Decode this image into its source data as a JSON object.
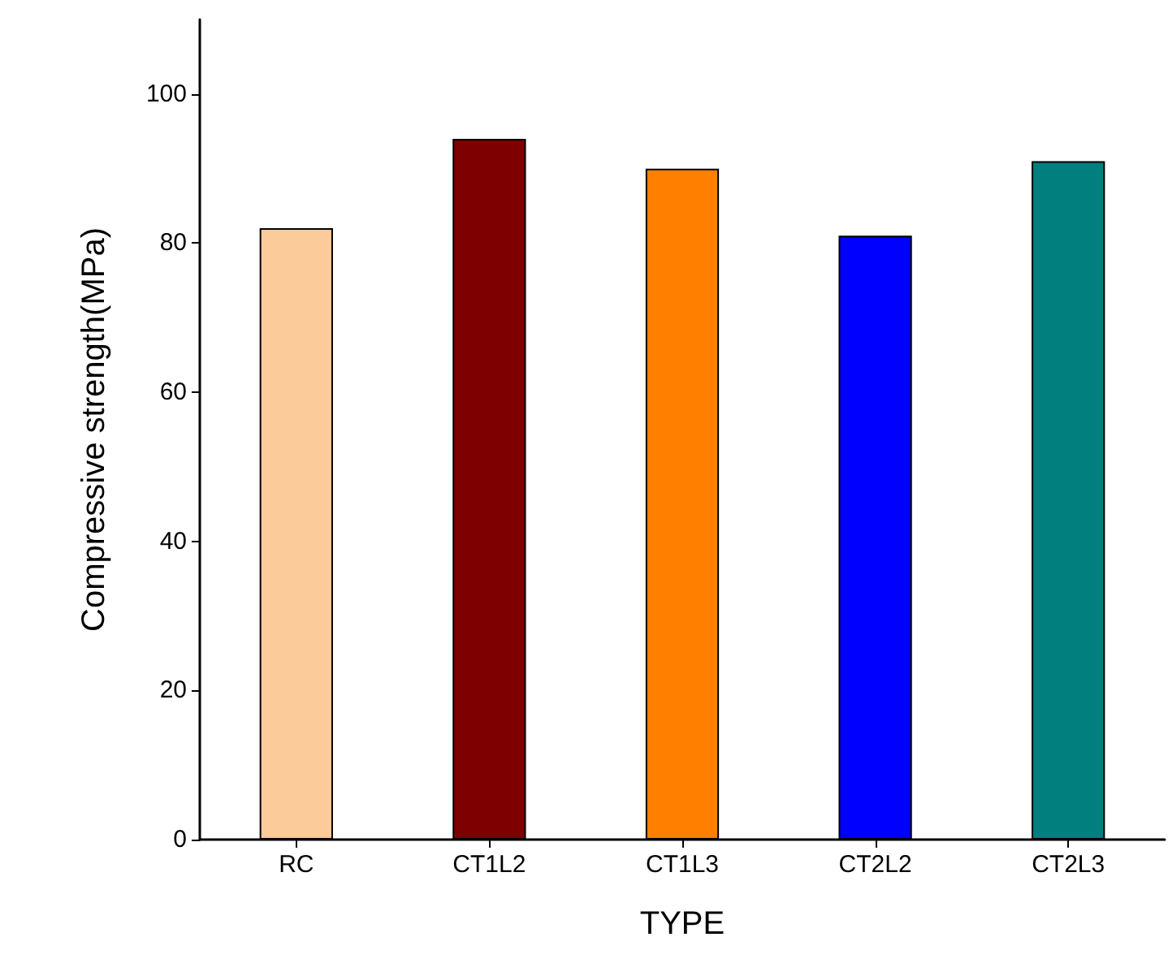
{
  "chart_data": {
    "type": "bar",
    "xlabel": "TYPE",
    "ylabel": "Compressive strength(MPa)",
    "categories": [
      "RC",
      "CT1L2",
      "CT1L3",
      "CT2L2",
      "CT2L3"
    ],
    "values": [
      82,
      94,
      90,
      81,
      91
    ],
    "colors": [
      "#fccb9a",
      "#7f0000",
      "#ff8000",
      "#0000ff",
      "#007f7f"
    ],
    "ylim": [
      0,
      110
    ],
    "yticks": [
      0,
      20,
      40,
      60,
      80,
      100
    ]
  }
}
